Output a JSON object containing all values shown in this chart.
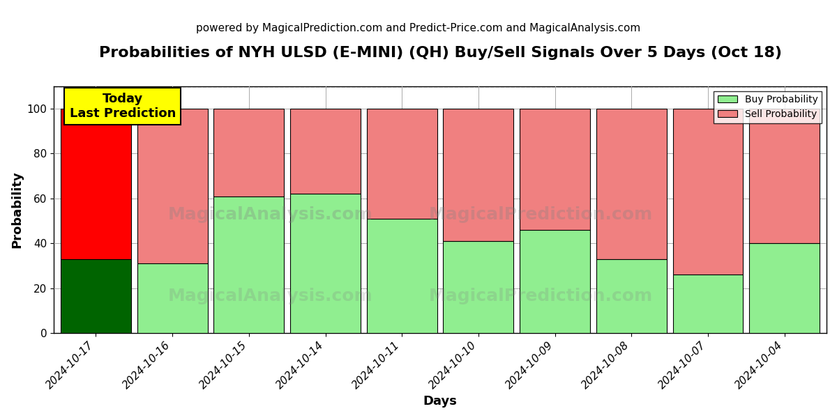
{
  "title": "Probabilities of NYH ULSD (E-MINI) (QH) Buy/Sell Signals Over 5 Days (Oct 18)",
  "subtitle": "powered by MagicalPrediction.com and Predict-Price.com and MagicalAnalysis.com",
  "xlabel": "Days",
  "ylabel": "Probability",
  "categories": [
    "2024-10-17",
    "2024-10-16",
    "2024-10-15",
    "2024-10-14",
    "2024-10-11",
    "2024-10-10",
    "2024-10-09",
    "2024-10-08",
    "2024-10-07",
    "2024-10-04"
  ],
  "buy_values": [
    33,
    31,
    61,
    62,
    51,
    41,
    46,
    33,
    26,
    40
  ],
  "sell_values": [
    67,
    69,
    39,
    38,
    49,
    59,
    54,
    67,
    74,
    60
  ],
  "today_bar_buy_color": "#006400",
  "today_bar_sell_color": "#FF0000",
  "other_bar_buy_color": "#90EE90",
  "other_bar_sell_color": "#F08080",
  "today_label_bg": "#FFFF00",
  "today_label_text": "Today\nLast Prediction",
  "legend_buy_label": "Buy Probability",
  "legend_sell_label": "Sell Probability",
  "ylim": [
    0,
    110
  ],
  "yticks": [
    0,
    20,
    40,
    60,
    80,
    100
  ],
  "dashed_line_y": 110,
  "bg_color": "#ffffff",
  "grid_color": "#aaaaaa",
  "title_fontsize": 16,
  "subtitle_fontsize": 11,
  "axis_label_fontsize": 13,
  "tick_fontsize": 11,
  "bar_width": 0.92
}
